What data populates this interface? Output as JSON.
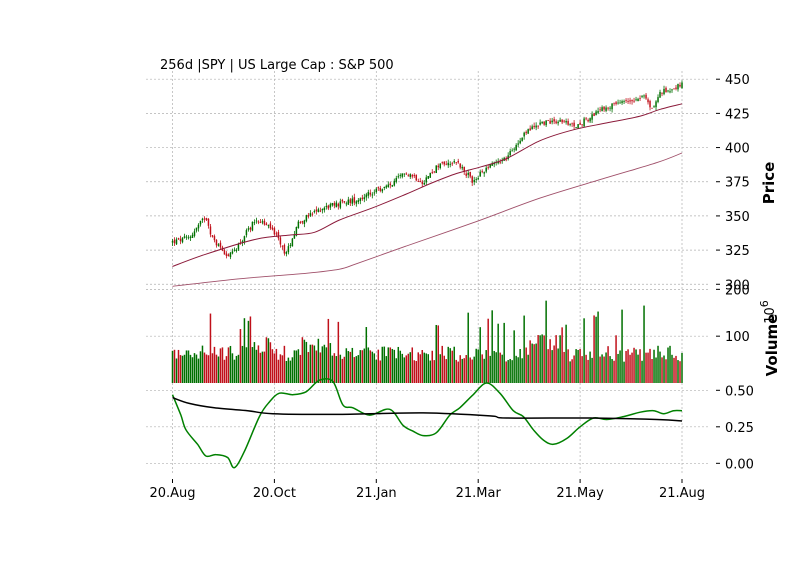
{
  "chart_data": {
    "type": "candlestick",
    "title": "256d |SPY | US Large Cap : S&P 500",
    "x_tick_labels": [
      "20.Aug",
      "20.Oct",
      "21.Jan",
      "21.Mar",
      "21.May",
      "21.Aug"
    ],
    "x_tick_index": [
      0,
      61,
      122,
      183,
      244,
      305
    ],
    "num_bars": 256,
    "colors": {
      "up": "#007000",
      "down": "#c0101a",
      "ma_fast": "#8b1a3a",
      "ma_slow": "#a0506a",
      "osc": "#008000",
      "osc_mean": "#000000",
      "grid": "#b0b0b0"
    },
    "panels": {
      "price": {
        "ylabel": "Price",
        "ylim": [
          298,
          456
        ],
        "yticks": [
          300,
          325,
          350,
          375,
          400,
          425,
          450
        ],
        "close_anchors": [
          [
            0,
            331
          ],
          [
            10,
            334
          ],
          [
            20,
            350
          ],
          [
            24,
            333
          ],
          [
            34,
            320
          ],
          [
            40,
            330
          ],
          [
            50,
            348
          ],
          [
            60,
            340
          ],
          [
            68,
            322
          ],
          [
            75,
            345
          ],
          [
            90,
            356
          ],
          [
            110,
            362
          ],
          [
            130,
            372
          ],
          [
            140,
            382
          ],
          [
            150,
            375
          ],
          [
            160,
            388
          ],
          [
            170,
            390
          ],
          [
            180,
            375
          ],
          [
            190,
            388
          ],
          [
            200,
            392
          ],
          [
            210,
            410
          ],
          [
            220,
            418
          ],
          [
            232,
            420
          ],
          [
            240,
            415
          ],
          [
            250,
            422
          ],
          [
            260,
            430
          ],
          [
            268,
            432
          ],
          [
            282,
            438
          ],
          [
            287,
            428
          ],
          [
            292,
            440
          ],
          [
            305,
            446
          ]
        ],
        "ma_fast_anchors": [
          [
            0,
            313
          ],
          [
            20,
            322
          ],
          [
            50,
            333
          ],
          [
            70,
            336
          ],
          [
            85,
            338
          ],
          [
            100,
            347
          ],
          [
            120,
            356
          ],
          [
            140,
            366
          ],
          [
            155,
            374
          ],
          [
            170,
            381
          ],
          [
            185,
            386
          ],
          [
            200,
            392
          ],
          [
            220,
            405
          ],
          [
            240,
            413
          ],
          [
            260,
            418
          ],
          [
            280,
            423
          ],
          [
            292,
            428
          ],
          [
            305,
            432
          ]
        ],
        "ma_slow_anchors": [
          [
            0,
            298.5
          ],
          [
            40,
            304
          ],
          [
            80,
            308
          ],
          [
            100,
            311
          ],
          [
            110,
            315
          ],
          [
            140,
            328
          ],
          [
            180,
            345
          ],
          [
            220,
            363
          ],
          [
            260,
            378
          ],
          [
            290,
            389
          ],
          [
            305,
            396
          ]
        ]
      },
      "volume": {
        "ylabel": "Volume",
        "multiplier": "10^6",
        "ylim": [
          0,
          205
        ],
        "yticks": [
          100,
          200
        ]
      },
      "oscillator": {
        "ylim": [
          -0.08,
          0.55
        ],
        "yticks": [
          0.0,
          0.25,
          0.5
        ],
        "ytick_labels": [
          "0.00",
          "0.25",
          "0.50"
        ],
        "line_anchors": [
          [
            0,
            0.47
          ],
          [
            5,
            0.33
          ],
          [
            8,
            0.23
          ],
          [
            15,
            0.13
          ],
          [
            20,
            0.05
          ],
          [
            26,
            0.06
          ],
          [
            33,
            0.04
          ],
          [
            37,
            -0.03
          ],
          [
            43,
            0.08
          ],
          [
            52,
            0.32
          ],
          [
            58,
            0.42
          ],
          [
            64,
            0.48
          ],
          [
            72,
            0.47
          ],
          [
            80,
            0.49
          ],
          [
            88,
            0.57
          ],
          [
            96,
            0.56
          ],
          [
            102,
            0.4
          ],
          [
            108,
            0.38
          ],
          [
            118,
            0.33
          ],
          [
            130,
            0.37
          ],
          [
            138,
            0.26
          ],
          [
            144,
            0.22
          ],
          [
            150,
            0.19
          ],
          [
            158,
            0.21
          ],
          [
            166,
            0.33
          ],
          [
            172,
            0.38
          ],
          [
            180,
            0.47
          ],
          [
            188,
            0.55
          ],
          [
            196,
            0.48
          ],
          [
            204,
            0.36
          ],
          [
            210,
            0.32
          ],
          [
            216,
            0.23
          ],
          [
            222,
            0.16
          ],
          [
            228,
            0.13
          ],
          [
            236,
            0.17
          ],
          [
            244,
            0.25
          ],
          [
            252,
            0.31
          ],
          [
            260,
            0.3
          ],
          [
            270,
            0.32
          ],
          [
            280,
            0.35
          ],
          [
            288,
            0.36
          ],
          [
            294,
            0.34
          ],
          [
            300,
            0.36
          ],
          [
            305,
            0.36
          ]
        ],
        "mean_anchors": [
          [
            0,
            0.45
          ],
          [
            10,
            0.41
          ],
          [
            25,
            0.38
          ],
          [
            45,
            0.36
          ],
          [
            60,
            0.34
          ],
          [
            100,
            0.335
          ],
          [
            150,
            0.345
          ],
          [
            190,
            0.325
          ],
          [
            200,
            0.31
          ],
          [
            250,
            0.31
          ],
          [
            290,
            0.3
          ],
          [
            305,
            0.29
          ]
        ]
      }
    }
  }
}
